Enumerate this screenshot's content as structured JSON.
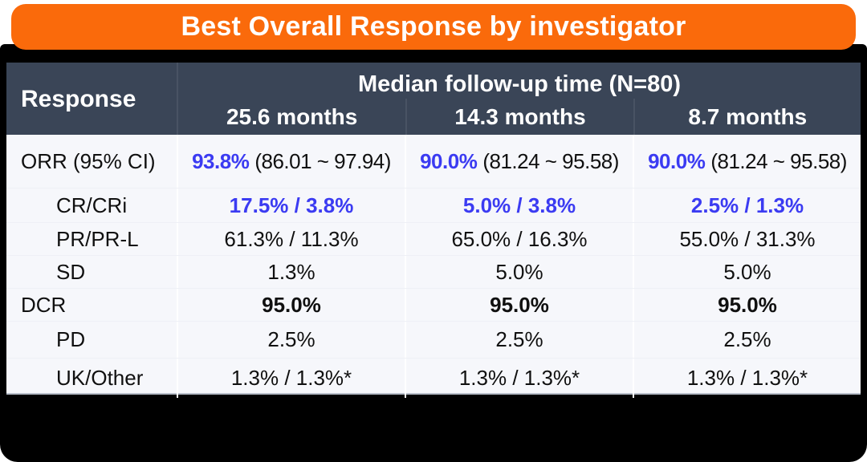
{
  "title": "Best Overall Response by investigator",
  "colors": {
    "banner_orange": "#fa6a0b",
    "header_slate": "#3a4557",
    "highlight_blue": "#3b3bf2",
    "body_background": "#f6f7fb",
    "slide_background": "#000000"
  },
  "table": {
    "response_header": "Response",
    "group_header": "Median follow-up time (N=80)",
    "columns": [
      "25.6 months",
      "14.3 months",
      "8.7 months"
    ],
    "rows": [
      {
        "label": "ORR (95% CI)",
        "cells": [
          {
            "pct": "93.8%",
            "ci": "(86.01 ~ 97.94)"
          },
          {
            "pct": "90.0%",
            "ci": "(81.24 ~ 95.58)"
          },
          {
            "pct": "90.0%",
            "ci": "(81.24 ~ 95.58)"
          }
        ]
      },
      {
        "label": "CR/CRi",
        "values": [
          "17.5% / 3.8%",
          "5.0% / 3.8%",
          "2.5% / 1.3%"
        ]
      },
      {
        "label": "PR/PR-L",
        "values": [
          "61.3% / 11.3%",
          "65.0% / 16.3%",
          "55.0% / 31.3%"
        ]
      },
      {
        "label": "SD",
        "values": [
          "1.3%",
          "5.0%",
          "5.0%"
        ]
      },
      {
        "label": "DCR",
        "values": [
          "95.0%",
          "95.0%",
          "95.0%"
        ]
      },
      {
        "label": "PD",
        "values": [
          "2.5%",
          "2.5%",
          "2.5%"
        ]
      },
      {
        "label": "UK/Other",
        "values": [
          "1.3% / 1.3%*",
          "1.3% / 1.3%*",
          "1.3% / 1.3%*"
        ]
      }
    ]
  },
  "chart_data": {
    "type": "table",
    "title": "Best Overall Response by investigator",
    "column_group_header": "Median follow-up time (N=80)",
    "columns": [
      "Response",
      "25.6 months",
      "14.3 months",
      "8.7 months"
    ],
    "rows": [
      [
        "ORR (95% CI)",
        "93.8% (86.01 ~ 97.94)",
        "90.0% (81.24 ~ 95.58)",
        "90.0% (81.24 ~ 95.58)"
      ],
      [
        "CR/CRi",
        "17.5% / 3.8%",
        "5.0% / 3.8%",
        "2.5% / 1.3%"
      ],
      [
        "PR/PR-L",
        "61.3% / 11.3%",
        "65.0% / 16.3%",
        "55.0% / 31.3%"
      ],
      [
        "SD",
        "1.3%",
        "5.0%",
        "5.0%"
      ],
      [
        "DCR",
        "95.0%",
        "95.0%",
        "95.0%"
      ],
      [
        "PD",
        "2.5%",
        "2.5%",
        "2.5%"
      ],
      [
        "UK/Other",
        "1.3% / 1.3%*",
        "1.3% / 1.3%*",
        "1.3% / 1.3%*"
      ]
    ]
  }
}
